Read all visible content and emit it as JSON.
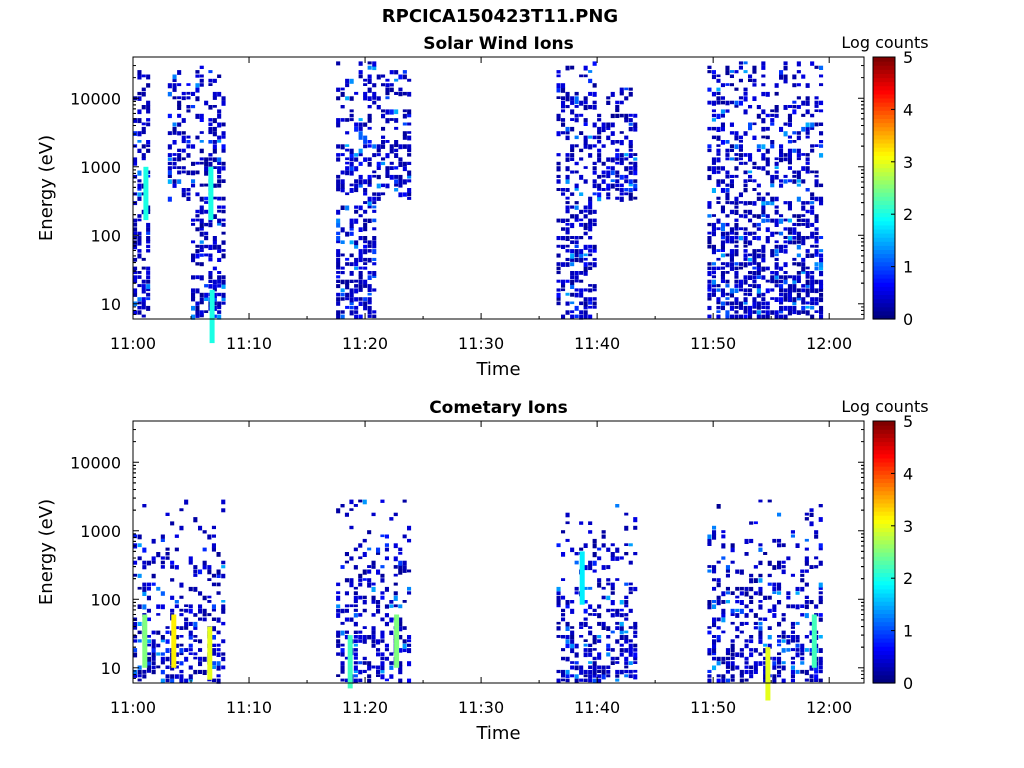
{
  "figure": {
    "title": "RPCICA150423T11.PNG"
  },
  "chart_data": [
    {
      "type": "heatmap",
      "title": "Solar Wind Ions",
      "xlabel": "Time",
      "ylabel": "Energy (eV)",
      "x_ticks": [
        "11:00",
        "11:10",
        "11:20",
        "11:30",
        "11:40",
        "11:50",
        "12:00"
      ],
      "x_range_minutes": [
        0,
        63
      ],
      "y_scale": "log",
      "y_ticks": [
        10,
        100,
        1000,
        10000
      ],
      "y_tick_labels": [
        "10",
        "100",
        "1000",
        "10000"
      ],
      "y_range": [
        6,
        40000
      ],
      "colorbar": {
        "label": "Log counts",
        "range": [
          0,
          5
        ],
        "ticks": [
          "0",
          "1",
          "2",
          "3",
          "4",
          "5"
        ],
        "colormap": "jet"
      },
      "bursts": [
        {
          "start_min": 0.0,
          "end_min": 1.5,
          "energy_min": 6,
          "energy_max": 25000,
          "level": "low",
          "bright_spots": [
            {
              "min": 0.9,
              "energy": 500,
              "log_counts": 2
            }
          ]
        },
        {
          "start_min": 3.0,
          "end_min": 5.0,
          "energy_min": 300,
          "energy_max": 25000,
          "level": "low"
        },
        {
          "start_min": 5.0,
          "end_min": 8.0,
          "energy_min": 6,
          "energy_max": 30000,
          "level": "low",
          "bright_spots": [
            {
              "min": 6.5,
              "energy": 500,
              "log_counts": 2
            },
            {
              "min": 6.6,
              "energy": 8,
              "log_counts": 2
            }
          ]
        },
        {
          "start_min": 17.5,
          "end_min": 21.0,
          "energy_min": 6,
          "energy_max": 35000,
          "level": "low"
        },
        {
          "start_min": 21.0,
          "end_min": 24.0,
          "energy_min": 300,
          "energy_max": 25000,
          "level": "low"
        },
        {
          "start_min": 36.5,
          "end_min": 40.0,
          "energy_min": 6,
          "energy_max": 35000,
          "level": "low"
        },
        {
          "start_min": 40.0,
          "end_min": 43.5,
          "energy_min": 300,
          "energy_max": 15000,
          "level": "low"
        },
        {
          "start_min": 49.5,
          "end_min": 53.0,
          "energy_min": 6,
          "energy_max": 35000,
          "level": "low"
        },
        {
          "start_min": 53.0,
          "end_min": 59.5,
          "energy_min": 6,
          "energy_max": 35000,
          "level": "low"
        }
      ]
    },
    {
      "type": "heatmap",
      "title": "Cometary Ions",
      "xlabel": "Time",
      "ylabel": "Energy (eV)",
      "x_ticks": [
        "11:00",
        "11:10",
        "11:20",
        "11:30",
        "11:40",
        "11:50",
        "12:00"
      ],
      "x_range_minutes": [
        0,
        63
      ],
      "y_scale": "log",
      "y_ticks": [
        10,
        100,
        1000,
        10000
      ],
      "y_tick_labels": [
        "10",
        "100",
        "1000",
        "10000"
      ],
      "y_range": [
        6,
        40000
      ],
      "colorbar": {
        "label": "Log counts",
        "range": [
          0,
          5
        ],
        "ticks": [
          "0",
          "1",
          "2",
          "3",
          "4",
          "5"
        ],
        "colormap": "jet"
      },
      "bursts": [
        {
          "start_min": 0.0,
          "end_min": 8.0,
          "energy_min": 6,
          "energy_max": 3000,
          "level": "mid",
          "bright_spots": [
            {
              "min": 0.8,
              "energy": 30,
              "log_counts": 2.5
            },
            {
              "min": 3.3,
              "energy": 30,
              "log_counts": 3.2
            },
            {
              "min": 6.4,
              "energy": 20,
              "log_counts": 3
            }
          ]
        },
        {
          "start_min": 17.5,
          "end_min": 24.0,
          "energy_min": 6,
          "energy_max": 3000,
          "level": "mid",
          "bright_spots": [
            {
              "min": 18.5,
              "energy": 15,
              "log_counts": 2.2
            },
            {
              "min": 22.5,
              "energy": 30,
              "log_counts": 2.5
            }
          ]
        },
        {
          "start_min": 36.5,
          "end_min": 43.5,
          "energy_min": 6,
          "energy_max": 3000,
          "level": "mid",
          "bright_spots": [
            {
              "min": 38.5,
              "energy": 250,
              "log_counts": 1.8
            }
          ]
        },
        {
          "start_min": 49.5,
          "end_min": 59.5,
          "energy_min": 6,
          "energy_max": 3000,
          "level": "mid",
          "bright_spots": [
            {
              "min": 54.5,
              "energy": 10,
              "log_counts": 3
            },
            {
              "min": 58.5,
              "energy": 30,
              "log_counts": 2.2
            }
          ]
        }
      ]
    }
  ]
}
